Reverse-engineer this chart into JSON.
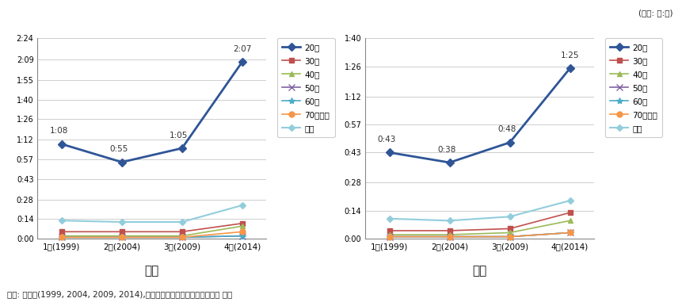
{
  "x_labels": [
    "1차(1999)",
    "2차(2004)",
    "3차(2009)",
    "4차(2014)"
  ],
  "x_values": [
    0,
    1,
    2,
    3
  ],
  "male": {
    "20대": [
      68,
      55,
      65,
      127
    ],
    "30대": [
      5,
      5,
      5,
      11
    ],
    "40대": [
      2,
      2,
      2,
      9
    ],
    "50대": [
      1,
      1,
      1,
      2
    ],
    "60대": [
      1,
      1,
      1,
      2
    ],
    "70대이상": [
      1,
      1,
      1,
      5
    ],
    "전체": [
      13,
      12,
      12,
      24
    ]
  },
  "female": {
    "20대": [
      43,
      38,
      48,
      85
    ],
    "30대": [
      4,
      4,
      5,
      13
    ],
    "40대": [
      2,
      2,
      3,
      9
    ],
    "50대": [
      1,
      1,
      1,
      3
    ],
    "60대": [
      1,
      1,
      1,
      3
    ],
    "70대이상": [
      1,
      1,
      1,
      3
    ],
    "전체": [
      10,
      9,
      11,
      19
    ]
  },
  "male_annotations": {
    "20대": [
      "1:08",
      "0:55",
      "1:05",
      "2:07"
    ]
  },
  "female_annotations": {
    "20대": [
      "0:43",
      "0:38",
      "0:48",
      "1:25"
    ]
  },
  "male_ylim": [
    0,
    144
  ],
  "female_ylim": [
    0,
    100
  ],
  "male_yticks": [
    0,
    14,
    28,
    43,
    57,
    71,
    86,
    100,
    114,
    129,
    144
  ],
  "male_ytick_labels": [
    "0:00",
    "0:14",
    "0:28",
    "0:43",
    "0:57",
    "1:12",
    "1:26",
    "1:40",
    "1:55",
    "2:09",
    "2:24"
  ],
  "female_yticks": [
    0,
    14,
    28,
    43,
    57,
    71,
    86,
    100
  ],
  "female_ytick_labels": [
    "0:00",
    "0:14",
    "0:28",
    "0:43",
    "0:57",
    "1:12",
    "1:26",
    "1:40"
  ],
  "colors": {
    "20대": "#2F5597",
    "30대": "#C0504D",
    "40대": "#9BBB59",
    "50대": "#8064A2",
    "60대": "#4BACC6",
    "70대이상": "#F79646",
    "전체": "#92CDDC"
  },
  "legend_order": [
    "20대",
    "30대",
    "40대",
    "50대",
    "60대",
    "70대이상",
    "전체"
  ],
  "title_male": "남성",
  "title_female": "여성",
  "unit_text": "(단위: 시:분)",
  "source_text": "자료: 통계청(1999, 2004, 2009, 2014),「생활시간조사」마이크로데이터 분석",
  "bg_color": "#FFFFFF",
  "grid_color": "#BBBBBB"
}
